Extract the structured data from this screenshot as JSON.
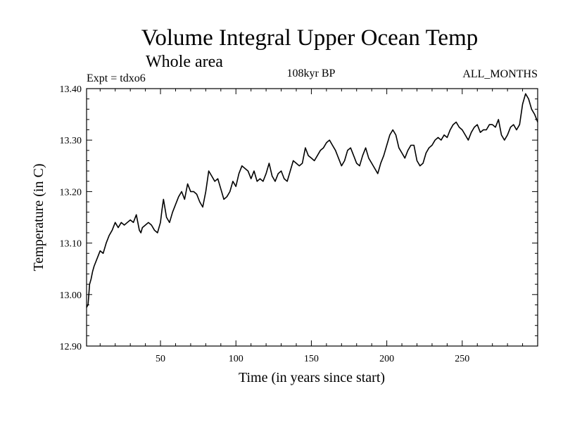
{
  "chart_data": {
    "type": "line",
    "title": "Volume Integral Upper Ocean Temp",
    "subtitle": "Whole area",
    "annotations": {
      "left": "Expt = tdxo6",
      "center": "108kyr BP",
      "right": "ALL_MONTHS"
    },
    "xlabel": "Time (in years since start)",
    "ylabel": "Temperature (in C)",
    "xlim": [
      1,
      300
    ],
    "ylim": [
      12.9,
      13.4
    ],
    "xticks": [
      50,
      100,
      150,
      200,
      250
    ],
    "xtick_labels": [
      "50",
      "100",
      "150",
      "200",
      "250"
    ],
    "yticks": [
      12.9,
      13.0,
      13.1,
      13.2,
      13.3,
      13.4
    ],
    "ytick_labels": [
      "12.90",
      "13.00",
      "13.10",
      "13.20",
      "13.30",
      "13.40"
    ],
    "grid": false,
    "colors": {
      "line": "#000000",
      "axes": "#000000",
      "background": "#ffffff"
    },
    "series": [
      {
        "x": [
          1,
          2,
          3,
          4,
          5,
          6,
          8,
          10,
          12,
          14,
          16,
          18,
          20,
          22,
          24,
          26,
          28,
          30,
          32,
          34,
          36,
          37,
          38,
          40,
          42,
          44,
          46,
          48,
          50,
          51,
          52,
          54,
          56,
          58,
          60,
          62,
          64,
          66,
          68,
          70,
          72,
          74,
          76,
          78,
          80,
          82,
          84,
          86,
          88,
          90,
          92,
          94,
          96,
          98,
          100,
          102,
          104,
          106,
          108,
          110,
          112,
          114,
          116,
          118,
          120,
          122,
          124,
          126,
          128,
          130,
          132,
          134,
          136,
          138,
          140,
          142,
          144,
          146,
          148,
          150,
          152,
          154,
          156,
          158,
          160,
          162,
          164,
          166,
          168,
          170,
          172,
          174,
          176,
          178,
          180,
          182,
          184,
          186,
          188,
          190,
          192,
          194,
          196,
          198,
          200,
          202,
          204,
          206,
          208,
          210,
          212,
          214,
          216,
          218,
          220,
          222,
          224,
          226,
          228,
          230,
          232,
          234,
          236,
          238,
          240,
          242,
          244,
          246,
          248,
          250,
          252,
          254,
          256,
          258,
          260,
          262,
          264,
          266,
          268,
          270,
          272,
          274,
          276,
          278,
          280,
          282,
          284,
          286,
          288,
          290,
          292,
          294,
          296,
          298,
          300
        ],
        "y": [
          12.975,
          12.98,
          13.02,
          13.03,
          13.045,
          13.055,
          13.07,
          13.085,
          13.08,
          13.1,
          13.115,
          13.125,
          13.14,
          13.13,
          13.14,
          13.135,
          13.14,
          13.145,
          13.14,
          13.155,
          13.125,
          13.12,
          13.13,
          13.135,
          13.14,
          13.135,
          13.125,
          13.12,
          13.14,
          13.165,
          13.185,
          13.15,
          13.14,
          13.16,
          13.175,
          13.19,
          13.2,
          13.185,
          13.215,
          13.2,
          13.2,
          13.195,
          13.18,
          13.17,
          13.2,
          13.24,
          13.23,
          13.22,
          13.225,
          13.205,
          13.185,
          13.19,
          13.2,
          13.22,
          13.21,
          13.235,
          13.25,
          13.245,
          13.24,
          13.225,
          13.24,
          13.22,
          13.225,
          13.22,
          13.235,
          13.255,
          13.23,
          13.22,
          13.235,
          13.24,
          13.225,
          13.22,
          13.24,
          13.26,
          13.255,
          13.25,
          13.255,
          13.285,
          13.27,
          13.265,
          13.26,
          13.27,
          13.28,
          13.285,
          13.295,
          13.3,
          13.29,
          13.28,
          13.265,
          13.25,
          13.26,
          13.28,
          13.285,
          13.27,
          13.255,
          13.25,
          13.27,
          13.285,
          13.265,
          13.255,
          13.245,
          13.235,
          13.255,
          13.27,
          13.29,
          13.31,
          13.32,
          13.31,
          13.285,
          13.275,
          13.265,
          13.28,
          13.29,
          13.29,
          13.26,
          13.25,
          13.255,
          13.275,
          13.285,
          13.29,
          13.3,
          13.305,
          13.3,
          13.31,
          13.305,
          13.32,
          13.33,
          13.335,
          13.325,
          13.32,
          13.31,
          13.3,
          13.315,
          13.325,
          13.33,
          13.315,
          13.32,
          13.32,
          13.33,
          13.33,
          13.325,
          13.34,
          13.31,
          13.3,
          13.31,
          13.325,
          13.33,
          13.32,
          13.33,
          13.37,
          13.39,
          13.38,
          13.36,
          13.35,
          13.335
        ]
      }
    ]
  }
}
